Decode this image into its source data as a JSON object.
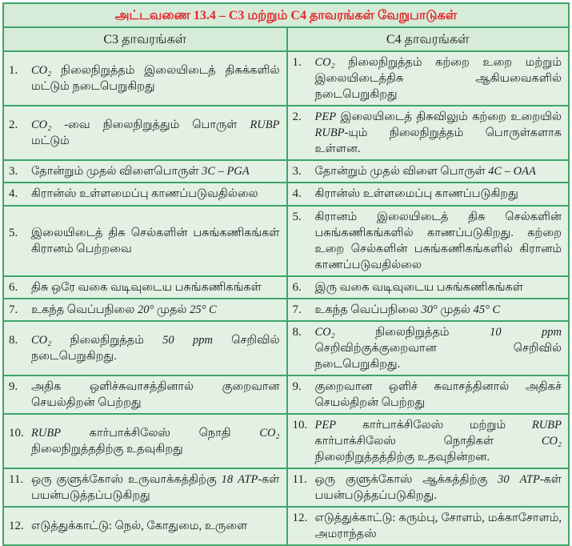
{
  "title": "அட்டவணை 13.4 –  C3 மற்றும் C4 தாவரங்கள் வேறுபாடுகள்",
  "columns": [
    "C3 தாவரங்கள்",
    "C4 தாவரங்கள்"
  ],
  "rows": [
    {
      "num": "1.",
      "c3": "CO₂ நிலைநிறுத்தம் இலையிடைத் திசுக்களில் மட்டும் நடைபெறுகிறது",
      "c4": "CO₂ நிலைநிறுத்தம் கற்றை உறை மற்றும் இலையிடைத்திசு ஆகியவைகளில் நடைபெறுகிறது"
    },
    {
      "num": "2.",
      "c3": "CO₂ -வை நிலைநிறுத்தும் பொருள் RUBP மட்டும்",
      "c4": "PEP இலையிடைத் திசுவிலும் கற்றை உறையில் RUBP-யும் நிலைநிறுத்தம் பொருள்களாக உள்ளன."
    },
    {
      "num": "3.",
      "c3": "தோன்றும் முதல் விளைபொருள் 3C – PGA",
      "c4": "தோன்றும் முதல் விளை பொருள் 4C – OAA"
    },
    {
      "num": "4.",
      "c3": "கிரான்ஸ் உள்ளமைப்பு காணப்படுவதில்லை",
      "c4": "கிரான்ஸ் உள்ளமைப்பு காணப்படுகிறது"
    },
    {
      "num": "5.",
      "c3": "இலையிடைத் திசு செல்களின் பசுங்கணிகங்கள் கிரானம் பெற்றவை",
      "c4": "கிரானம் இலையிடைத் திசு செல்களின் பசுங்கணிகங்களில் காணப்படுகிறது. கற்றை உறை செல்களின் பசுங்கணிகங்களில் கிரானம் காணப்படுவதில்லை"
    },
    {
      "num": "6.",
      "c3": "திசு ஒரே வகை வடிவுடைய பசுங்கணிகங்கள்",
      "c4": "இரு வகை வடிவுடைய பசுங்கணிகங்கள்"
    },
    {
      "num": "7.",
      "c3": "உகந்த வெப்பநிலை 20° முதல் 25° C",
      "c4": "உகந்த வெப்பநிலை 30° முதல் 45° C"
    },
    {
      "num": "8.",
      "c3": "CO₂ நிலைநிறுத்தம் 50 ppm செறிவில் நடைபெறுகிறது.",
      "c4": "CO₂ நிலைநிறுத்தம் 10 ppm செறிவிற்குக்குறைவான செறிவில் நடைபெறுகிறது."
    },
    {
      "num": "9.",
      "c3": "அதிக ஒளிச்சுவாசத்தினால் குறைவான செயல்திறன் பெற்றது",
      "c4": "குறைவான ஒளிச் சுவாசத்தினால் அதிகச் செயல்திறன் பெற்றது"
    },
    {
      "num": "10.",
      "c3": "RUBP கார்பாக்சிலேஸ் நொதி CO₂ நிலைநிறுத்ததிற்கு உதவுகிறது",
      "c4": "PEP கார்பாக்சிலேஸ் மற்றும் RUBP கார்பாக்சிலேஸ் நொதிகள் CO₂ நிலைநிறுத்தத்திற்கு உதவுநின்றன."
    },
    {
      "num": "11.",
      "c3": "ஒரு குளுக்கோஸ் உருவாக்கத்திற்கு 18 ATP-கள் பயன்படுத்தப்படுகிறது",
      "c4": "ஒரு குளுக்கோஸ் ஆக்கத்திற்கு 30 ATP-கள் பயன்படுத்தப்படுகிறது."
    },
    {
      "num": "12.",
      "c3": "எடுத்துக்காட்டு: நெல், கோதுமை, உருளை",
      "c4": "எடுத்துக்காட்டு: கரும்பு, சோளம், மக்காசோளம், அமராந்தஸ்"
    }
  ],
  "colors": {
    "border": "#3fa46a",
    "header_bg": "#d6ebd8",
    "cell_bg": "#e2f1e3",
    "title_text": "#e4262b",
    "text": "#1f1f1f"
  }
}
